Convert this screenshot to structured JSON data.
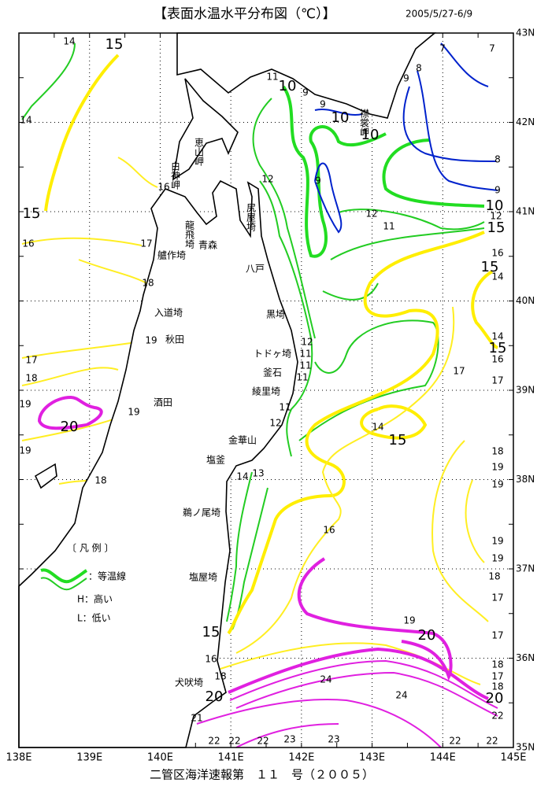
{
  "header": {
    "title": "【表面水温水平分布図（℃）】",
    "period": "2005/5/27-6/9"
  },
  "footer": "二管区海洋速報第　１１　号（２００５）",
  "axes": {
    "longitude": [
      "138E",
      "139E",
      "140E",
      "141E",
      "142E",
      "143E",
      "144E",
      "145E"
    ],
    "latitude": [
      "43N",
      "42N",
      "41N",
      "40N",
      "39N",
      "38N",
      "37N",
      "36N",
      "35N"
    ]
  },
  "place_names": [
    "恵山岬",
    "白神岬",
    "尻屋埼",
    "龍飛埼",
    "青森",
    "艫作埼",
    "八戸",
    "入道埼",
    "秋田",
    "黒埼",
    "トドヶ埼",
    "釜石",
    "綾里埼",
    "酒田",
    "金華山",
    "塩釜",
    "鵜ノ尾埼",
    "塩屋埼",
    "犬吠埼",
    "襟裳岬"
  ],
  "legend": {
    "title": "〔 凡 例 〕",
    "isotherm": "：等温線",
    "high": "H：高い",
    "low": "L：低い"
  },
  "contour_labels": [
    "14",
    "15",
    "14",
    "16",
    "15",
    "16",
    "17",
    "18",
    "19",
    "17",
    "18",
    "19",
    "20",
    "19",
    "19",
    "18",
    "11",
    "10",
    "9",
    "9",
    "10",
    "10",
    "7",
    "7",
    "9",
    "8",
    "8",
    "9",
    "10",
    "9",
    "12",
    "12",
    "11",
    "12",
    "15",
    "16",
    "15",
    "14",
    "14",
    "15",
    "16",
    "17",
    "17",
    "12",
    "11",
    "11",
    "11",
    "11",
    "12",
    "14",
    "15",
    "18",
    "19",
    "19",
    "13",
    "14",
    "16",
    "19",
    "19",
    "18",
    "17",
    "17",
    "19",
    "20",
    "18",
    "17",
    "18",
    "20",
    "22",
    "15",
    "16",
    "18",
    "20",
    "24",
    "24",
    "21",
    "22",
    "22",
    "22",
    "23",
    "23",
    "22",
    "22"
  ]
}
